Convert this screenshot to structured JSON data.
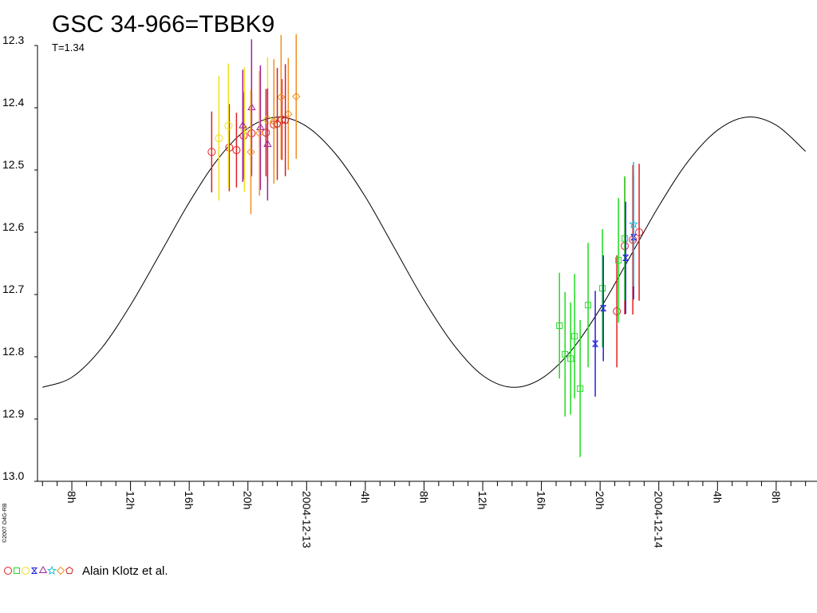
{
  "chart_data": {
    "type": "scatter",
    "title": "GSC 34-966=TBBK9",
    "subtitle": "T=1.34",
    "copyright": "©2007 O4G-RB",
    "legend": "Alain Klotz et al.",
    "xlim": [
      -18.34,
      34.78
    ],
    "ylim": [
      12.3,
      13.0
    ],
    "y_inverted": true,
    "yticks": [
      12.3,
      12.4,
      12.5,
      12.6,
      12.7,
      12.8,
      12.9,
      {
        "value": 13,
        "label": "13.0"
      }
    ],
    "xticks": [
      {
        "value": -16,
        "label": "8h"
      },
      {
        "value": -12,
        "label": "12h"
      },
      {
        "value": -8,
        "label": "16h"
      },
      {
        "value": -4,
        "label": "20h"
      },
      {
        "value": 0,
        "label": "2004-12-13"
      },
      {
        "value": 4,
        "label": "4h"
      },
      {
        "value": 8,
        "label": "8h"
      },
      {
        "value": 12,
        "label": "12h"
      },
      {
        "value": 16,
        "label": "16h"
      },
      {
        "value": 20,
        "label": "20h"
      },
      {
        "value": 24,
        "label": "2004-12-14"
      },
      {
        "value": 28,
        "label": "4h"
      },
      {
        "value": 32,
        "label": "8h"
      }
    ],
    "xminor_ticks": [
      -18,
      -17,
      -15,
      -14,
      -13,
      -11,
      -10,
      -9,
      -7,
      -6,
      -5,
      -3,
      -2,
      -1,
      1,
      2,
      3,
      5,
      6,
      7,
      9,
      10,
      11,
      13,
      14,
      15,
      17,
      18,
      19,
      21,
      22,
      23,
      25,
      26,
      27,
      29,
      30,
      31,
      33,
      34
    ],
    "curve": {
      "color": "#000000",
      "x": [
        -18,
        -16,
        -14,
        -12,
        -10,
        -8,
        -6,
        -4,
        -2,
        0,
        2,
        4,
        6,
        8,
        10,
        12,
        14,
        16,
        18,
        20,
        22,
        24,
        26,
        28,
        30,
        32,
        34
      ],
      "values": [
        12.849,
        12.833,
        12.787,
        12.717,
        12.635,
        12.552,
        12.481,
        12.433,
        12.415,
        12.43,
        12.475,
        12.543,
        12.626,
        12.709,
        12.78,
        12.83,
        12.849,
        12.835,
        12.791,
        12.723,
        12.641,
        12.558,
        12.486,
        12.436,
        12.415,
        12.428,
        12.47
      ]
    },
    "series": [
      {
        "marker": "circle",
        "color": "#e02020",
        "x": [
          -6.47,
          -5.27,
          -4.78,
          -4.29,
          -3.75,
          -2.77,
          -2.23,
          -1.68,
          21.14,
          21.68,
          22.23,
          22.66
        ],
        "values": [
          12.471,
          12.464,
          12.468,
          12.445,
          12.441,
          12.44,
          12.427,
          12.419,
          12.727,
          12.622,
          12.612,
          12.6
        ],
        "errors": [
          0.065,
          0.07,
          0.06,
          0.07,
          0.065,
          0.07,
          0.07,
          0.065,
          0.09,
          0.11,
          0.12,
          0.11
        ]
      },
      {
        "marker": "square",
        "color": "#20dd20",
        "x": [
          17.23,
          17.61,
          17.99,
          18.26,
          18.64,
          19.18,
          20.16,
          21.25,
          21.68
        ],
        "values": [
          12.75,
          12.796,
          12.803,
          12.767,
          12.851,
          12.717,
          12.69,
          12.645,
          12.61
        ],
        "errors": [
          0.085,
          0.1,
          0.09,
          0.1,
          0.11,
          0.1,
          0.095,
          0.1,
          0.1
        ]
      },
      {
        "marker": "circle",
        "color": "#f0e020",
        "x": [
          -5.98,
          -5.33,
          -4.24,
          -2.66
        ],
        "values": [
          12.449,
          12.429,
          12.435,
          12.419
        ],
        "errors": [
          0.1,
          0.1,
          0.1,
          0.1
        ]
      },
      {
        "marker": "hourglass",
        "color": "#2020e0",
        "x": [
          19.67,
          20.22,
          21.74,
          22.28
        ],
        "values": [
          12.779,
          12.722,
          12.641,
          12.608
        ],
        "errors": [
          0.085,
          0.085,
          0.09,
          0.1
        ]
      },
      {
        "marker": "triangle",
        "color": "#a020a0",
        "x": [
          -4.35,
          -3.75,
          -3.15,
          -2.66
        ],
        "values": [
          12.429,
          12.4,
          12.432,
          12.459
        ],
        "errors": [
          0.09,
          0.11,
          0.1,
          0.09
        ]
      },
      {
        "marker": "star",
        "color": "#20c0e0",
        "x": [
          22.28
        ],
        "values": [
          12.587
        ],
        "errors": [
          0.1
        ]
      },
      {
        "marker": "diamond",
        "color": "#f09020",
        "x": [
          -3.8,
          -3.21,
          -2.23,
          -1.74,
          -1.25,
          -0.71
        ],
        "values": [
          12.471,
          12.441,
          12.422,
          12.383,
          12.41,
          12.382
        ],
        "errors": [
          0.1,
          0.1,
          0.1,
          0.1,
          0.09,
          0.1
        ]
      },
      {
        "marker": "pentagon",
        "color": "#d02020",
        "x": [
          -2.0,
          -1.45
        ],
        "values": [
          12.426,
          12.42
        ],
        "errors": [
          0.09,
          0.09
        ]
      }
    ]
  }
}
